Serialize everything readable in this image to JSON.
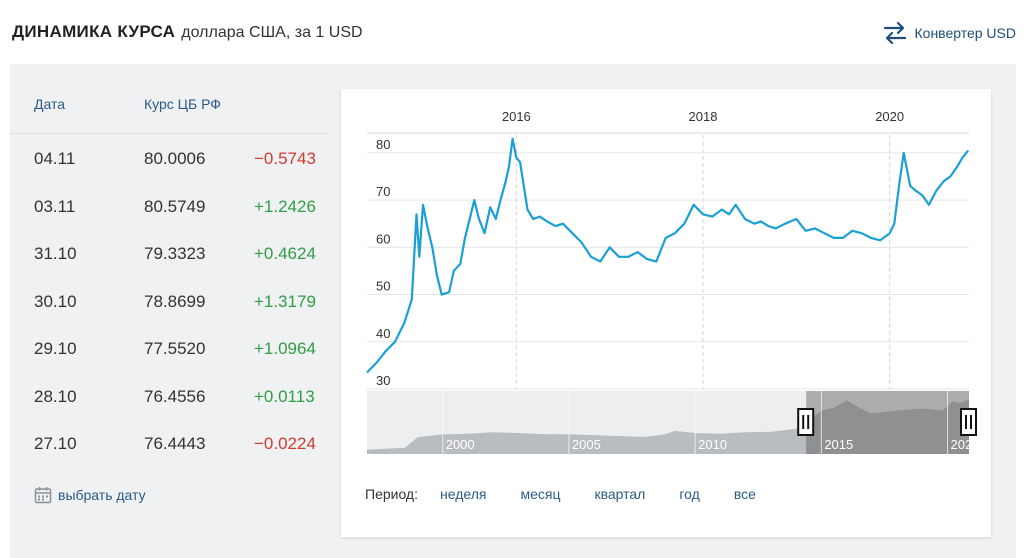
{
  "header": {
    "title_main": "ДИНАМИКА КУРСА",
    "title_sub": "доллара США, за 1 USD",
    "converter_label": "Конвертер USD"
  },
  "table": {
    "col_date": "Дата",
    "col_rate": "Курс ЦБ РФ",
    "rows": [
      {
        "date": "04.11",
        "rate": "80.0006",
        "change": "−0.5743",
        "direction": "down"
      },
      {
        "date": "03.11",
        "rate": "80.5749",
        "change": "+1.2426",
        "direction": "up"
      },
      {
        "date": "31.10",
        "rate": "79.3323",
        "change": "+0.4624",
        "direction": "up"
      },
      {
        "date": "30.10",
        "rate": "78.8699",
        "change": "+1.3179",
        "direction": "up"
      },
      {
        "date": "29.10",
        "rate": "77.5520",
        "change": "+1.0964",
        "direction": "up"
      },
      {
        "date": "28.10",
        "rate": "76.4556",
        "change": "+0.0113",
        "direction": "up"
      },
      {
        "date": "27.10",
        "rate": "76.4443",
        "change": "−0.0224",
        "direction": "down"
      }
    ],
    "pick_date_label": "выбрать дату"
  },
  "period": {
    "label": "Период:",
    "options": [
      "неделя",
      "месяц",
      "квартал",
      "год",
      "все"
    ]
  },
  "colors": {
    "line": "#1a9fd6",
    "negative": "#d23a2f",
    "positive": "#2f9e44",
    "link": "#2c5b86",
    "panel_bg": "#f0f1f3"
  },
  "chart_data": {
    "type": "line",
    "x_ticks": [
      "2016",
      "2018",
      "2020"
    ],
    "y_ticks": [
      30,
      40,
      50,
      60,
      70,
      80
    ],
    "ylim": [
      30,
      84
    ],
    "xlim": [
      2014.4,
      2020.85
    ],
    "grid": true,
    "x": [
      2014.4,
      2014.5,
      2014.6,
      2014.7,
      2014.8,
      2014.88,
      2014.93,
      2014.96,
      2015.0,
      2015.05,
      2015.1,
      2015.15,
      2015.2,
      2015.28,
      2015.33,
      2015.4,
      2015.45,
      2015.5,
      2015.55,
      2015.6,
      2015.66,
      2015.72,
      2015.78,
      2015.83,
      2015.88,
      2015.92,
      2015.96,
      2016.0,
      2016.04,
      2016.08,
      2016.12,
      2016.18,
      2016.25,
      2016.33,
      2016.42,
      2016.5,
      2016.6,
      2016.7,
      2016.8,
      2016.9,
      2017.0,
      2017.1,
      2017.2,
      2017.3,
      2017.4,
      2017.5,
      2017.6,
      2017.7,
      2017.8,
      2017.9,
      2018.0,
      2018.1,
      2018.2,
      2018.28,
      2018.35,
      2018.45,
      2018.55,
      2018.62,
      2018.7,
      2018.78,
      2018.88,
      2019.0,
      2019.1,
      2019.2,
      2019.3,
      2019.4,
      2019.5,
      2019.6,
      2019.7,
      2019.8,
      2019.9,
      2020.0,
      2020.05,
      2020.1,
      2020.15,
      2020.18,
      2020.22,
      2020.28,
      2020.35,
      2020.42,
      2020.5,
      2020.58,
      2020.65,
      2020.72,
      2020.78,
      2020.84
    ],
    "y": [
      33.5,
      35.5,
      38.0,
      40.0,
      44.0,
      49.0,
      67.0,
      58.0,
      69.0,
      64.0,
      60.0,
      54.0,
      50.0,
      50.5,
      55.0,
      56.5,
      62.0,
      66.0,
      70.0,
      66.0,
      63.0,
      68.5,
      66.0,
      70.0,
      73.5,
      77.0,
      83.0,
      79.0,
      78.0,
      73.0,
      68.0,
      66.0,
      66.5,
      65.5,
      64.5,
      65.0,
      63.0,
      61.0,
      58.0,
      57.0,
      60.0,
      58.0,
      58.0,
      59.0,
      57.5,
      57.0,
      62.0,
      63.0,
      65.0,
      69.0,
      67.0,
      66.5,
      68.0,
      67.0,
      69.0,
      66.0,
      65.0,
      65.5,
      64.5,
      64.0,
      65.0,
      66.0,
      63.5,
      64.0,
      63.0,
      62.0,
      62.0,
      63.5,
      63.0,
      62.0,
      61.5,
      63.0,
      65.0,
      73.0,
      80.0,
      77.0,
      73.0,
      72.0,
      71.0,
      69.0,
      72.0,
      74.0,
      75.0,
      77.0,
      79.0,
      80.5
    ]
  },
  "navigator": {
    "year_labels": [
      "2000",
      "2005",
      "2010",
      "2015",
      "202"
    ],
    "x": [
      1997.0,
      1998.5,
      1999.0,
      2000.0,
      2001.0,
      2002.0,
      2003.0,
      2004.0,
      2005.0,
      2006.0,
      2007.0,
      2008.0,
      2008.8,
      2009.2,
      2010.0,
      2011.0,
      2012.0,
      2013.0,
      2014.0,
      2014.6,
      2015.0,
      2015.5,
      2016.0,
      2016.5,
      2017.0,
      2018.0,
      2019.0,
      2019.8,
      2020.2,
      2020.5,
      2020.85
    ],
    "y": [
      6,
      9,
      24,
      28,
      29,
      31,
      30,
      28.5,
      28,
      27,
      25.5,
      24.5,
      28,
      33,
      30,
      29,
      31,
      31.5,
      36,
      50,
      62,
      66,
      77,
      66,
      58,
      62,
      65,
      62,
      75,
      73,
      78
    ],
    "xlim": [
      1997.0,
      2020.85
    ],
    "ylim": [
      0,
      90
    ],
    "selection": [
      2014.4,
      2020.85
    ]
  }
}
